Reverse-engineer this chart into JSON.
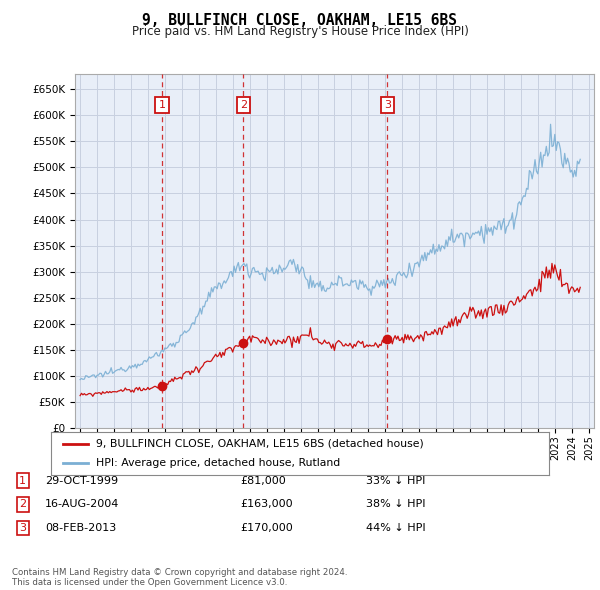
{
  "title": "9, BULLFINCH CLOSE, OAKHAM, LE15 6BS",
  "subtitle": "Price paid vs. HM Land Registry's House Price Index (HPI)",
  "ylim": [
    0,
    680000
  ],
  "yticks": [
    0,
    50000,
    100000,
    150000,
    200000,
    250000,
    300000,
    350000,
    400000,
    450000,
    500000,
    550000,
    600000,
    650000
  ],
  "ytick_labels": [
    "£0",
    "£50K",
    "£100K",
    "£150K",
    "£200K",
    "£250K",
    "£300K",
    "£350K",
    "£400K",
    "£450K",
    "£500K",
    "£550K",
    "£600K",
    "£650K"
  ],
  "xlim_start": 1994.7,
  "xlim_end": 2025.3,
  "hpi_color": "#7bafd4",
  "price_color": "#cc1111",
  "vline_color": "#cc1111",
  "grid_color": "#c8d0e0",
  "bg_color": "#ffffff",
  "plot_bg_color": "#e8eef8",
  "transactions": [
    {
      "num": 1,
      "date": "29-OCT-1999",
      "price": 81000,
      "pct": "33%",
      "direction": "↓",
      "year": 1999.83
    },
    {
      "num": 2,
      "date": "16-AUG-2004",
      "price": 163000,
      "pct": "38%",
      "direction": "↓",
      "year": 2004.62
    },
    {
      "num": 3,
      "date": "08-FEB-2013",
      "price": 170000,
      "pct": "44%",
      "direction": "↓",
      "year": 2013.11
    }
  ],
  "legend_property": "9, BULLFINCH CLOSE, OAKHAM, LE15 6BS (detached house)",
  "legend_hpi": "HPI: Average price, detached house, Rutland",
  "footer": "Contains HM Land Registry data © Crown copyright and database right 2024.\nThis data is licensed under the Open Government Licence v3.0."
}
